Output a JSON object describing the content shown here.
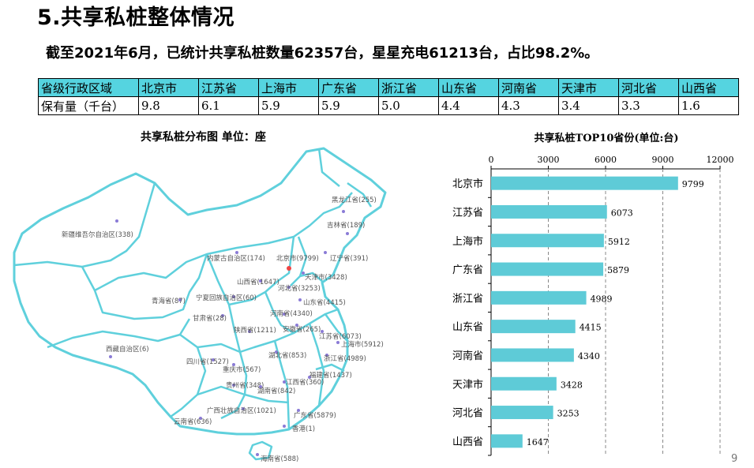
{
  "header": {
    "title": "5.共享私桩整体情况",
    "summary": "截至2021年6月，已统计共享私桩数量62357台，星星充电61213台，占比98.2%。"
  },
  "table": {
    "row_headers": [
      "省级行政区域",
      "保有量（千台）"
    ],
    "provinces": [
      "北京市",
      "江苏省",
      "上海市",
      "广东省",
      "浙江省",
      "山东省",
      "河南省",
      "天津市",
      "河北省",
      "山西省"
    ],
    "values": [
      "9.8",
      "6.1",
      "5.9",
      "5.9",
      "5.0",
      "4.4",
      "4.3",
      "3.4",
      "3.3",
      "1.6"
    ]
  },
  "map": {
    "title": "共享私桩分布图   单位：座",
    "labels": [
      {
        "text": "黑龙江省(255)"
      },
      {
        "text": "吉林省(189)"
      },
      {
        "text": "新疆维吾尔自治区(338)"
      },
      {
        "text": "内蒙古自治区(174)"
      },
      {
        "text": "北京市(9799)"
      },
      {
        "text": "辽宁省(391)"
      },
      {
        "text": "天津市(3428)"
      },
      {
        "text": "山西省(1647)"
      },
      {
        "text": "河北省(3253)"
      },
      {
        "text": "宁夏回族自治区(60)"
      },
      {
        "text": "青海省(87)"
      },
      {
        "text": "山东省(4415)"
      },
      {
        "text": "甘肃省(28)"
      },
      {
        "text": "河南省(4340)"
      },
      {
        "text": "陕西省(1211)"
      },
      {
        "text": "安徽省(265)"
      },
      {
        "text": "江苏省(6073)"
      },
      {
        "text": "上海市(5912)"
      },
      {
        "text": "西藏自治区(6)"
      },
      {
        "text": "湖北省(853)"
      },
      {
        "text": "浙江省(4989)"
      },
      {
        "text": "四川省(1527)"
      },
      {
        "text": "重庆市(567)"
      },
      {
        "text": "福建省(1437)"
      },
      {
        "text": "贵州省(348)"
      },
      {
        "text": "江西省(360)"
      },
      {
        "text": "湖南省(842)"
      },
      {
        "text": "广西壮族自治区(1021)"
      },
      {
        "text": "广东省(5879)"
      },
      {
        "text": "云南省(636)"
      },
      {
        "text": "香港(1)"
      },
      {
        "text": "海南省(588)"
      }
    ]
  },
  "chart_data": {
    "type": "bar",
    "orientation": "horizontal",
    "title": "共享私桩TOP10省份(单位:台)",
    "categories": [
      "北京市",
      "江苏省",
      "上海市",
      "广东省",
      "浙江省",
      "山东省",
      "河南省",
      "天津市",
      "河北省",
      "山西省"
    ],
    "values": [
      9799,
      6073,
      5912,
      5879,
      4989,
      4415,
      4340,
      3428,
      3253,
      1647
    ],
    "xlim": [
      0,
      12000
    ],
    "xticks": [
      "0",
      "3000",
      "6000",
      "9000",
      "12000"
    ],
    "axis_position": "top",
    "grid": true,
    "bar_color": "#5ecbd7"
  },
  "footer": {
    "page_number": "9"
  }
}
